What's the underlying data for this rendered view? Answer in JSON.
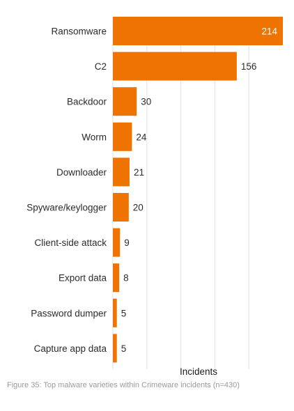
{
  "chart_data": {
    "type": "bar",
    "orientation": "horizontal",
    "categories": [
      "Ransomware",
      "C2",
      "Backdoor",
      "Worm",
      "Downloader",
      "Spyware/keylogger",
      "Client-side attack",
      "Export data",
      "Password dumper",
      "Capture app data"
    ],
    "values": [
      214,
      156,
      30,
      24,
      21,
      20,
      9,
      8,
      5,
      5
    ],
    "xlabel": "Incidents",
    "ylabel": "",
    "xlim": [
      0,
      214
    ],
    "grid": true,
    "bar_color": "#ef7300",
    "caption": "Figure 35: Top malware varieties within Crimeware incidents (n=430)"
  }
}
